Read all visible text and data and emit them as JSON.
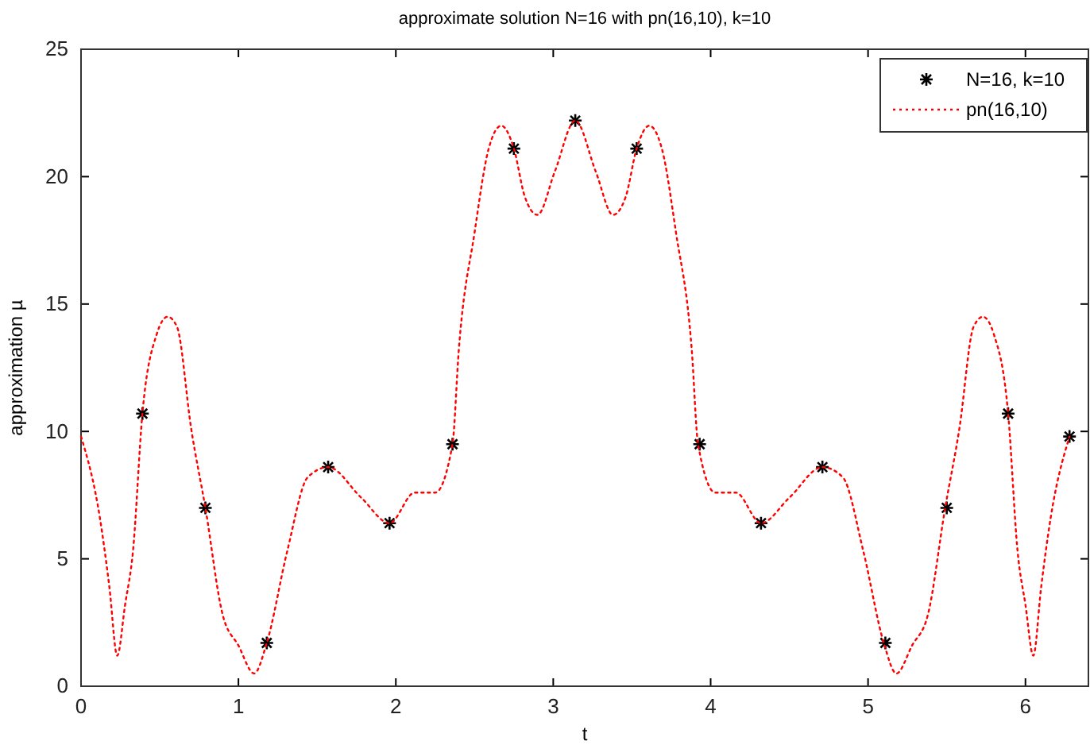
{
  "chart_data": {
    "type": "scatter",
    "title": "approximate solution N=16 with pn(16,10), k=10",
    "xlabel": "t",
    "ylabel": "approximation µ",
    "xlim": [
      0,
      6.4
    ],
    "ylim": [
      0,
      25
    ],
    "xticks": [
      0,
      1,
      2,
      3,
      4,
      5,
      6
    ],
    "yticks": [
      0,
      5,
      10,
      15,
      20,
      25
    ],
    "grid": false,
    "legend": "top right",
    "series": [
      {
        "name": "N=16, k=10",
        "marker": "cross",
        "color": "#000000",
        "x": [
          0.39,
          0.79,
          1.18,
          1.57,
          1.96,
          2.36,
          2.75,
          3.14,
          3.53,
          3.93,
          4.32,
          4.71,
          5.11,
          5.5,
          5.89,
          6.28
        ],
        "values": [
          10.7,
          7.0,
          1.7,
          8.6,
          6.4,
          9.5,
          21.1,
          22.2,
          21.1,
          9.5,
          6.4,
          8.6,
          1.7,
          7.0,
          10.7,
          9.8
        ]
      },
      {
        "name": "pn(16,10)",
        "type": "line",
        "marker": "none",
        "line_style": "dotted",
        "color": "#ff0000",
        "x": [
          0,
          0.12,
          0.18,
          0.23,
          0.28,
          0.33,
          0.39,
          0.48,
          0.55,
          0.61,
          0.7,
          0.79,
          0.9,
          1.0,
          1.1,
          1.18,
          1.31,
          1.44,
          1.57,
          1.78,
          1.96,
          2.12,
          2.25,
          2.36,
          2.4,
          2.5,
          2.59,
          2.67,
          2.75,
          2.82,
          2.9,
          3.01,
          3.14,
          3.27,
          3.38,
          3.46,
          3.53,
          3.61,
          3.69,
          3.78,
          3.88,
          3.92,
          4.03,
          4.16,
          4.32,
          4.5,
          4.71,
          4.84,
          4.97,
          5.1,
          5.18,
          5.28,
          5.38,
          5.49,
          5.58,
          5.67,
          5.73,
          5.8,
          5.89,
          5.95,
          6.0,
          6.05,
          6.1,
          6.16,
          6.28
        ],
        "values": [
          9.8,
          6.6,
          3.9,
          1.2,
          3.2,
          5.3,
          10.7,
          13.8,
          14.5,
          14.1,
          10.1,
          7.0,
          2.8,
          1.6,
          0.5,
          1.7,
          5.3,
          8.2,
          8.6,
          7.4,
          6.4,
          7.6,
          7.6,
          9.5,
          13.2,
          17.8,
          21.1,
          22.0,
          21.1,
          19.2,
          18.5,
          20.2,
          22.2,
          20.2,
          18.5,
          19.2,
          21.1,
          22.0,
          21.1,
          17.8,
          13.2,
          9.5,
          7.6,
          7.6,
          6.4,
          7.4,
          8.6,
          8.2,
          5.3,
          1.7,
          0.5,
          1.6,
          2.8,
          7.0,
          10.1,
          14.1,
          14.5,
          13.8,
          10.7,
          5.3,
          3.2,
          1.2,
          3.9,
          6.6,
          9.8
        ]
      }
    ]
  }
}
